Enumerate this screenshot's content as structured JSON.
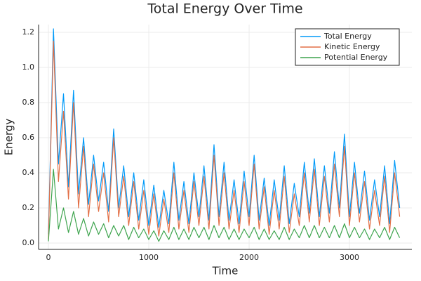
{
  "chart_data": {
    "type": "line",
    "title": "Total Energy Over Time",
    "x_label": "Time",
    "y_label": "Energy",
    "x": [
      0,
      50,
      100,
      150,
      200,
      250,
      300,
      350,
      400,
      450,
      500,
      550,
      600,
      650,
      700,
      750,
      800,
      850,
      900,
      950,
      1000,
      1050,
      1100,
      1150,
      1200,
      1250,
      1300,
      1350,
      1400,
      1450,
      1500,
      1550,
      1600,
      1650,
      1700,
      1750,
      1800,
      1850,
      1900,
      1950,
      2000,
      2050,
      2100,
      2150,
      2200,
      2250,
      2300,
      2350,
      2400,
      2450,
      2500,
      2550,
      2600,
      2650,
      2700,
      2750,
      2800,
      2850,
      2900,
      2950,
      3000,
      3050,
      3100,
      3150,
      3200,
      3250,
      3300,
      3350,
      3400,
      3450,
      3500
    ],
    "series": [
      {
        "name": "Total Energy",
        "color": "#009af9",
        "values": [
          0.05,
          1.22,
          0.45,
          0.85,
          0.32,
          0.87,
          0.28,
          0.6,
          0.22,
          0.5,
          0.24,
          0.46,
          0.18,
          0.65,
          0.2,
          0.44,
          0.15,
          0.4,
          0.13,
          0.36,
          0.1,
          0.33,
          0.09,
          0.3,
          0.11,
          0.46,
          0.13,
          0.35,
          0.11,
          0.4,
          0.15,
          0.44,
          0.13,
          0.56,
          0.15,
          0.46,
          0.13,
          0.36,
          0.11,
          0.41,
          0.15,
          0.5,
          0.13,
          0.37,
          0.1,
          0.36,
          0.13,
          0.44,
          0.11,
          0.34,
          0.15,
          0.46,
          0.17,
          0.48,
          0.15,
          0.44,
          0.17,
          0.52,
          0.2,
          0.62,
          0.15,
          0.46,
          0.17,
          0.41,
          0.13,
          0.36,
          0.15,
          0.44,
          0.11,
          0.47,
          0.2
        ]
      },
      {
        "name": "Kinetic Energy",
        "color": "#e26f46",
        "values": [
          0.02,
          1.15,
          0.35,
          0.75,
          0.25,
          0.8,
          0.2,
          0.55,
          0.15,
          0.45,
          0.18,
          0.4,
          0.12,
          0.6,
          0.15,
          0.38,
          0.1,
          0.35,
          0.08,
          0.3,
          0.05,
          0.28,
          0.04,
          0.25,
          0.06,
          0.4,
          0.08,
          0.3,
          0.06,
          0.35,
          0.1,
          0.38,
          0.08,
          0.5,
          0.1,
          0.4,
          0.08,
          0.3,
          0.06,
          0.35,
          0.1,
          0.45,
          0.08,
          0.32,
          0.05,
          0.3,
          0.08,
          0.38,
          0.06,
          0.28,
          0.1,
          0.4,
          0.12,
          0.42,
          0.1,
          0.38,
          0.12,
          0.45,
          0.15,
          0.55,
          0.1,
          0.4,
          0.12,
          0.35,
          0.08,
          0.3,
          0.1,
          0.38,
          0.06,
          0.4,
          0.15
        ]
      },
      {
        "name": "Potential Energy",
        "color": "#3da44d",
        "values": [
          0.01,
          0.42,
          0.08,
          0.2,
          0.06,
          0.18,
          0.05,
          0.14,
          0.04,
          0.12,
          0.05,
          0.11,
          0.03,
          0.1,
          0.04,
          0.1,
          0.02,
          0.09,
          0.03,
          0.08,
          0.02,
          0.07,
          0.01,
          0.07,
          0.02,
          0.09,
          0.02,
          0.08,
          0.02,
          0.09,
          0.03,
          0.09,
          0.02,
          0.1,
          0.03,
          0.09,
          0.02,
          0.08,
          0.02,
          0.08,
          0.03,
          0.09,
          0.02,
          0.08,
          0.02,
          0.07,
          0.02,
          0.09,
          0.02,
          0.08,
          0.03,
          0.1,
          0.03,
          0.1,
          0.03,
          0.09,
          0.03,
          0.1,
          0.03,
          0.11,
          0.03,
          0.09,
          0.03,
          0.08,
          0.02,
          0.08,
          0.03,
          0.09,
          0.02,
          0.09,
          0.03
        ]
      }
    ],
    "xlim": [
      -98,
      3622
    ],
    "ylim": [
      -0.036,
      1.244
    ],
    "xticks": [
      0,
      1000,
      2000,
      3000
    ],
    "yticks": [
      {
        "value": 0,
        "label": "0.0"
      },
      0.2,
      0.4,
      0.6,
      0.8,
      {
        "value": 1,
        "label": "1.0"
      },
      1.2
    ],
    "grid": true,
    "legend": "top-right"
  }
}
